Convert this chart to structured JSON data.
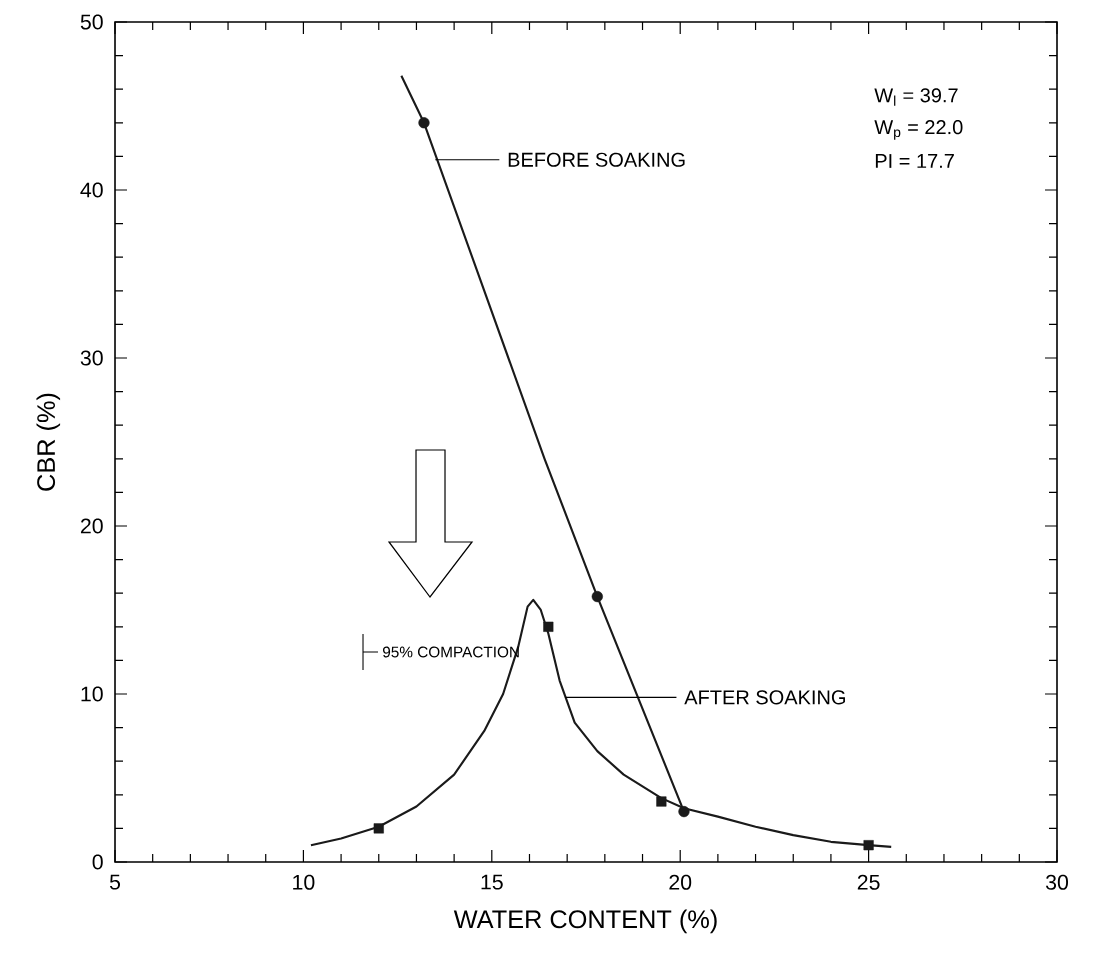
{
  "chart_data": {
    "type": "line",
    "xlabel": "WATER CONTENT (%)",
    "ylabel": "CBR (%)",
    "xlim": [
      5,
      30
    ],
    "xticks": [
      5,
      10,
      15,
      20,
      25,
      30
    ],
    "ylim": [
      0,
      50
    ],
    "yticks": [
      0,
      10,
      20,
      30,
      40,
      50
    ],
    "series": [
      {
        "type": "scatter",
        "marker": "circle",
        "color": "#1a1a1a",
        "x": [
          13.2,
          17.8,
          20.1
        ],
        "values": [
          44.0,
          15.8,
          3.0
        ]
      },
      {
        "marker": "none",
        "color": "#1a1a1a",
        "x": [
          12.6,
          13.2,
          16.4,
          17.8,
          20.1
        ],
        "values": [
          46.8,
          44.0,
          24.0,
          15.8,
          3.0
        ]
      },
      {
        "type": "scatter",
        "marker": "square",
        "color": "#1a1a1a",
        "x": [
          12.0,
          16.5,
          19.5,
          25.0
        ],
        "values": [
          2.0,
          14.0,
          3.6,
          1.0
        ]
      },
      {
        "marker": "none",
        "color": "#1a1a1a",
        "x": [
          10.2,
          11.0,
          12.0,
          13.0,
          14.0,
          14.8,
          15.3,
          15.7,
          15.95,
          16.1,
          16.3,
          16.5,
          16.8,
          17.2,
          17.8,
          18.5,
          19.5,
          20.1,
          21.0,
          22.0,
          23.0,
          24.0,
          25.0,
          25.6
        ],
        "values": [
          1.0,
          1.4,
          2.1,
          3.3,
          5.2,
          7.8,
          10.0,
          12.8,
          15.2,
          15.6,
          15.0,
          13.6,
          10.8,
          8.3,
          6.6,
          5.2,
          3.8,
          3.2,
          2.7,
          2.1,
          1.6,
          1.2,
          1.0,
          0.9
        ]
      }
    ],
    "annotations": [
      "W$_{l}$ = 39.7",
      "W$_{p}$ = 22.0",
      "PI = 17.7",
      "95% COMPACTION",
      {
        "text": "BEFORE SOAKING",
        "x": 13.5,
        "y": 41.8
      },
      {
        "text": "AFTER SOAKING",
        "x": 16.95,
        "y": 9.8
      }
    ]
  }
}
